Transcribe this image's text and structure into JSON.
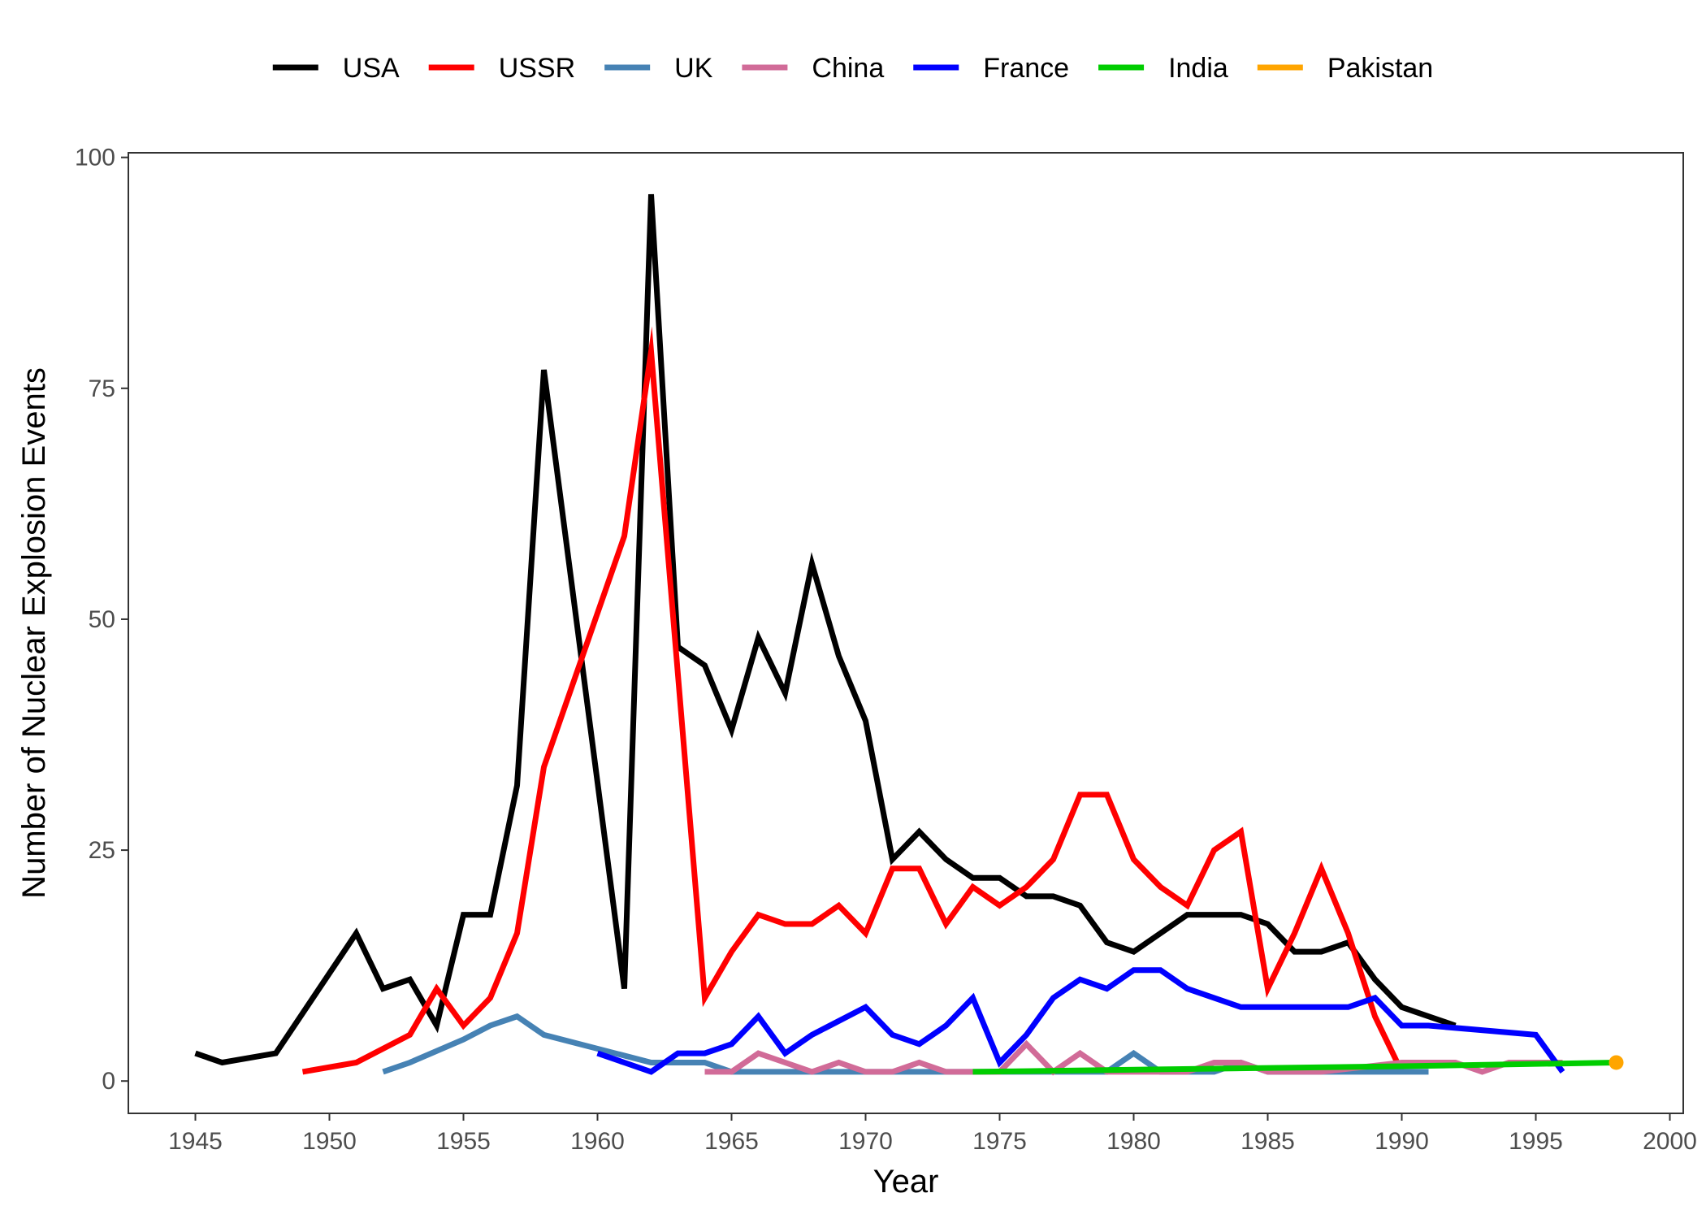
{
  "chart_data": {
    "type": "line",
    "xlabel": "Year",
    "ylabel": "Number of Nuclear Explosion Events",
    "xlim": [
      1942.5,
      2000.5
    ],
    "ylim": [
      -3.5,
      100.5
    ],
    "x_ticks": [
      1945,
      1950,
      1955,
      1960,
      1965,
      1970,
      1975,
      1980,
      1985,
      1990,
      1995,
      2000
    ],
    "y_ticks": [
      0,
      25,
      50,
      75,
      100
    ],
    "grid": false,
    "legend": "top",
    "series": [
      {
        "name": "USA",
        "color": "#000000",
        "points": [
          [
            1945,
            3
          ],
          [
            1946,
            2
          ],
          [
            1948,
            3
          ],
          [
            1951,
            16
          ],
          [
            1952,
            10
          ],
          [
            1953,
            11
          ],
          [
            1954,
            6
          ],
          [
            1955,
            18
          ],
          [
            1956,
            18
          ],
          [
            1957,
            32
          ],
          [
            1958,
            77
          ],
          [
            1961,
            10
          ],
          [
            1962,
            96
          ],
          [
            1963,
            47
          ],
          [
            1964,
            45
          ],
          [
            1965,
            38
          ],
          [
            1966,
            48
          ],
          [
            1967,
            42
          ],
          [
            1968,
            56
          ],
          [
            1969,
            46
          ],
          [
            1970,
            39
          ],
          [
            1971,
            24
          ],
          [
            1972,
            27
          ],
          [
            1973,
            24
          ],
          [
            1974,
            22
          ],
          [
            1975,
            22
          ],
          [
            1976,
            20
          ],
          [
            1977,
            20
          ],
          [
            1978,
            19
          ],
          [
            1979,
            15
          ],
          [
            1980,
            14
          ],
          [
            1981,
            16
          ],
          [
            1982,
            18
          ],
          [
            1983,
            18
          ],
          [
            1984,
            18
          ],
          [
            1985,
            17
          ],
          [
            1986,
            14
          ],
          [
            1987,
            14
          ],
          [
            1988,
            15
          ],
          [
            1989,
            11
          ],
          [
            1990,
            8
          ],
          [
            1991,
            7
          ],
          [
            1992,
            6
          ]
        ]
      },
      {
        "name": "USSR",
        "color": "#ff0000",
        "points": [
          [
            1949,
            1
          ],
          [
            1951,
            2
          ],
          [
            1953,
            5
          ],
          [
            1954,
            10
          ],
          [
            1955,
            6
          ],
          [
            1956,
            9
          ],
          [
            1957,
            16
          ],
          [
            1958,
            34
          ],
          [
            1961,
            59
          ],
          [
            1962,
            79
          ],
          [
            1964,
            9
          ],
          [
            1965,
            14
          ],
          [
            1966,
            18
          ],
          [
            1967,
            17
          ],
          [
            1968,
            17
          ],
          [
            1969,
            19
          ],
          [
            1970,
            16
          ],
          [
            1971,
            23
          ],
          [
            1972,
            23
          ],
          [
            1973,
            17
          ],
          [
            1974,
            21
          ],
          [
            1975,
            19
          ],
          [
            1976,
            21
          ],
          [
            1977,
            24
          ],
          [
            1978,
            31
          ],
          [
            1979,
            31
          ],
          [
            1980,
            24
          ],
          [
            1981,
            21
          ],
          [
            1982,
            19
          ],
          [
            1983,
            25
          ],
          [
            1984,
            27
          ],
          [
            1985,
            10
          ],
          [
            1986,
            16
          ],
          [
            1987,
            23
          ],
          [
            1988,
            16
          ],
          [
            1989,
            7
          ],
          [
            1990,
            1
          ]
        ]
      },
      {
        "name": "UK",
        "color": "#4682b4",
        "points": [
          [
            1952,
            1
          ],
          [
            1953,
            2
          ],
          [
            1955,
            4.5
          ],
          [
            1956,
            6
          ],
          [
            1957,
            7
          ],
          [
            1958,
            5
          ],
          [
            1962,
            2
          ],
          [
            1964,
            2
          ],
          [
            1965,
            1
          ],
          [
            1979,
            1
          ],
          [
            1980,
            3
          ],
          [
            1981,
            1
          ],
          [
            1983,
            1
          ],
          [
            1984,
            2
          ],
          [
            1985,
            1
          ],
          [
            1991,
            1
          ]
        ]
      },
      {
        "name": "China",
        "color": "#d16b98",
        "points": [
          [
            1964,
            1
          ],
          [
            1965,
            1
          ],
          [
            1966,
            3
          ],
          [
            1967,
            2
          ],
          [
            1968,
            1
          ],
          [
            1969,
            2
          ],
          [
            1970,
            1
          ],
          [
            1971,
            1
          ],
          [
            1972,
            2
          ],
          [
            1973,
            1
          ],
          [
            1975,
            1
          ],
          [
            1976,
            4
          ],
          [
            1977,
            1
          ],
          [
            1978,
            3
          ],
          [
            1979,
            1
          ],
          [
            1982,
            1
          ],
          [
            1983,
            2
          ],
          [
            1984,
            2
          ],
          [
            1985,
            1
          ],
          [
            1987,
            1
          ],
          [
            1990,
            2
          ],
          [
            1992,
            2
          ],
          [
            1993,
            1
          ],
          [
            1994,
            2
          ],
          [
            1995,
            2
          ],
          [
            1996,
            2
          ]
        ]
      },
      {
        "name": "France",
        "color": "#0000ff",
        "points": [
          [
            1960,
            3
          ],
          [
            1961,
            2
          ],
          [
            1962,
            1
          ],
          [
            1963,
            3
          ],
          [
            1964,
            3
          ],
          [
            1965,
            4
          ],
          [
            1966,
            7
          ],
          [
            1967,
            3
          ],
          [
            1968,
            5
          ],
          [
            1970,
            8
          ],
          [
            1971,
            5
          ],
          [
            1972,
            4
          ],
          [
            1973,
            6
          ],
          [
            1974,
            9
          ],
          [
            1975,
            2
          ],
          [
            1976,
            5
          ],
          [
            1977,
            9
          ],
          [
            1978,
            11
          ],
          [
            1979,
            10
          ],
          [
            1980,
            12
          ],
          [
            1981,
            12
          ],
          [
            1982,
            10
          ],
          [
            1984,
            8
          ],
          [
            1988,
            8
          ],
          [
            1989,
            9
          ],
          [
            1990,
            6
          ],
          [
            1991,
            6
          ],
          [
            1995,
            5
          ],
          [
            1996,
            1
          ]
        ]
      },
      {
        "name": "India",
        "color": "#00cd00",
        "points": [
          [
            1974,
            1
          ],
          [
            1990,
            1.6
          ],
          [
            1998,
            2
          ]
        ]
      },
      {
        "name": "Pakistan",
        "color": "#ffa500",
        "points": [
          [
            1998,
            2
          ]
        ]
      }
    ]
  }
}
